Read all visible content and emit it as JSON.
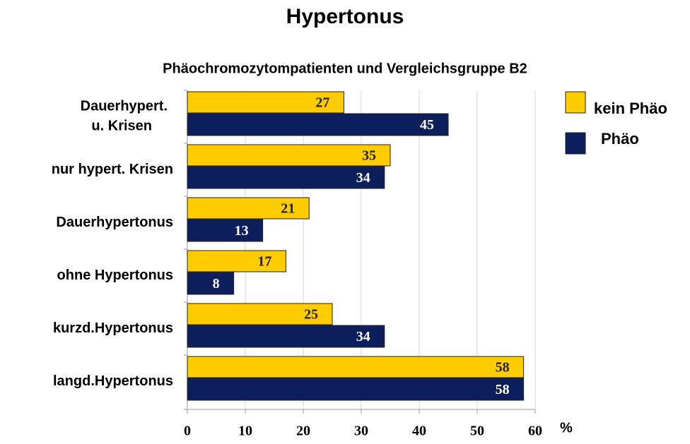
{
  "chart_data": {
    "type": "bar",
    "orientation": "horizontal",
    "title": "Hypertonus",
    "subtitle": "Phäochromozytompatienten und Vergleichsgruppe B2",
    "x_label": "%",
    "categories": [
      "Dauerhypert.\nu. Krisen",
      "nur hypert. Krisen",
      "Dauerhypertonus",
      "ohne Hypertonus",
      "kurzd.Hypertonus",
      "langd.Hypertonus"
    ],
    "series": [
      {
        "name": "kein Phäo",
        "color": "#ffcc00",
        "label_color": "#222222",
        "values": [
          27,
          35,
          21,
          17,
          25,
          58
        ]
      },
      {
        "name": "Phäo",
        "color": "#0c1f5c",
        "label_color": "#ffffff",
        "values": [
          45,
          34,
          13,
          8,
          34,
          58
        ]
      }
    ],
    "xlim": [
      0,
      60
    ],
    "xticks": [
      0,
      10,
      20,
      30,
      40,
      50,
      60
    ],
    "grid": true,
    "legend": "top-right"
  }
}
